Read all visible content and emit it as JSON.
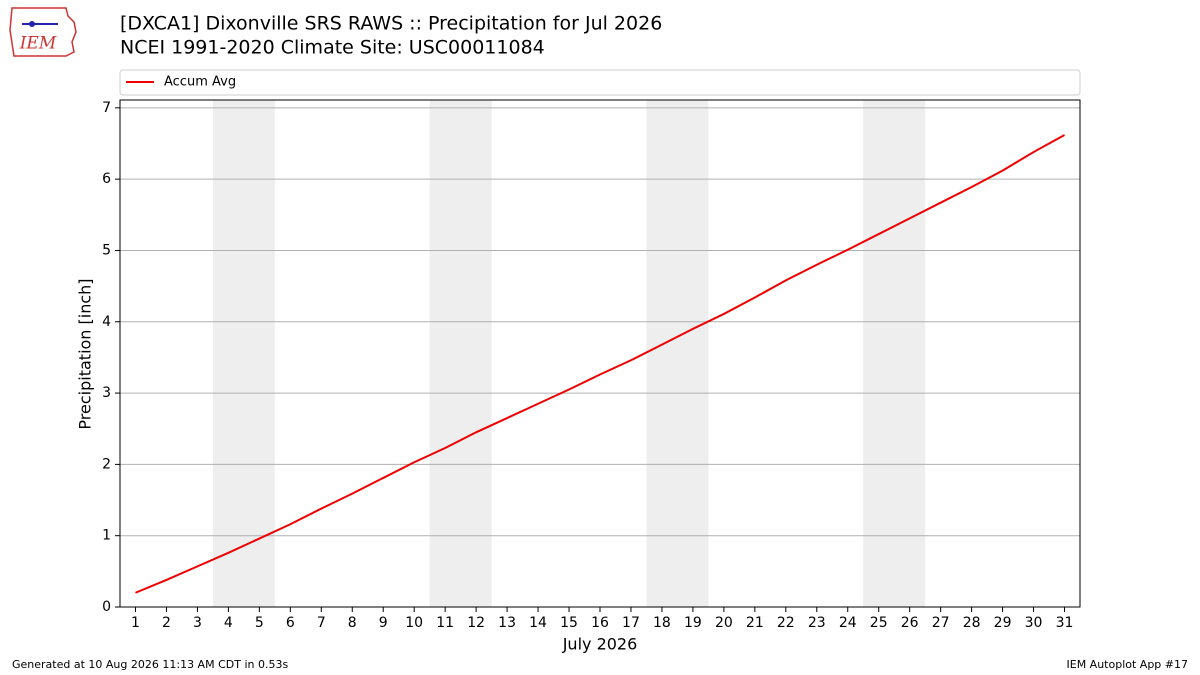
{
  "logo_text": "IEM",
  "chart_data": {
    "type": "line",
    "title": "[DXCA1] Dixonville SRS RAWS :: Precipitation for Jul 2026",
    "subtitle": "NCEI 1991-2020 Climate Site: USC00011084",
    "x_label": "July 2026",
    "y_label": "Precipitation [inch]",
    "x": [
      1,
      2,
      3,
      4,
      5,
      6,
      7,
      8,
      9,
      10,
      11,
      12,
      13,
      14,
      15,
      16,
      17,
      18,
      19,
      20,
      21,
      22,
      23,
      24,
      25,
      26,
      27,
      28,
      29,
      30,
      31
    ],
    "series": [
      {
        "name": "Accum Avg",
        "color": "#ee0000",
        "values": [
          0.2,
          0.38,
          0.57,
          0.76,
          0.96,
          1.16,
          1.38,
          1.59,
          1.81,
          2.03,
          2.23,
          2.45,
          2.65,
          2.85,
          3.05,
          3.26,
          3.46,
          3.68,
          3.9,
          4.11,
          4.34,
          4.58,
          4.8,
          5.01,
          5.23,
          5.45,
          5.67,
          5.89,
          6.12,
          6.38,
          6.62
        ]
      }
    ],
    "xlim": [
      0.5,
      31.5
    ],
    "xticks": [
      1,
      2,
      3,
      4,
      5,
      6,
      7,
      8,
      9,
      10,
      11,
      12,
      13,
      14,
      15,
      16,
      17,
      18,
      19,
      20,
      21,
      22,
      23,
      24,
      25,
      26,
      27,
      28,
      29,
      30,
      31
    ],
    "ylim": [
      0,
      7.11
    ],
    "yticks": [
      0,
      1,
      2,
      3,
      4,
      5,
      6,
      7
    ],
    "grid": true,
    "weekend_spans": [
      [
        3.5,
        5.5
      ],
      [
        10.5,
        12.5
      ],
      [
        17.5,
        19.5
      ],
      [
        24.5,
        26.5
      ]
    ],
    "legend_position": "top"
  },
  "footer": {
    "left": "Generated at 10 Aug 2026 11:13 AM CDT in 0.53s",
    "right": "IEM Autoplot App #17"
  }
}
